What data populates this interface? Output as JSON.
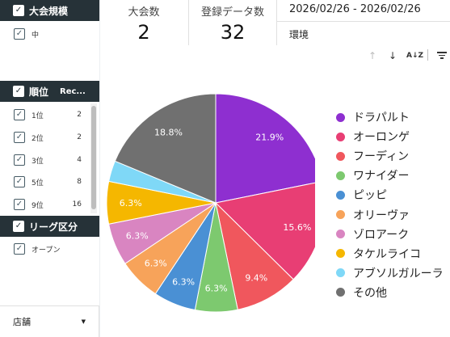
{
  "filters": {
    "tournament_size": {
      "title": "大会規模",
      "items": [
        {
          "label": "中",
          "checked": true
        }
      ]
    },
    "rank": {
      "title": "順位",
      "records_header": "Rec...",
      "items": [
        {
          "label": "1位",
          "records": "2",
          "checked": true
        },
        {
          "label": "2位",
          "records": "2",
          "checked": true
        },
        {
          "label": "3位",
          "records": "4",
          "checked": true
        },
        {
          "label": "5位",
          "records": "8",
          "checked": true
        },
        {
          "label": "9位",
          "records": "16",
          "checked": true
        }
      ]
    },
    "league": {
      "title": "リーグ区分",
      "items": [
        {
          "label": "オープン",
          "checked": true
        }
      ]
    },
    "store": {
      "label": "店舗"
    }
  },
  "kpis": [
    {
      "label": "大会数",
      "value": "2"
    },
    {
      "label": "登録データ数",
      "value": "32"
    }
  ],
  "date_range": "2026/02/26 - 2026/02/26",
  "section_label": "環境",
  "toolbar": {
    "sort_up_icon": "arrow-up-icon",
    "sort_down_icon": "arrow-down-icon",
    "sort_az_icon": "sort-az-icon",
    "filter_icon": "filter-icon"
  },
  "chart_data": {
    "type": "pie",
    "title": "",
    "slices": [
      {
        "name": "ドラパルト",
        "value": 21.9,
        "label": "21.9%",
        "color": "#8e2fd0"
      },
      {
        "name": "オーロンゲ",
        "value": 15.6,
        "label": "15.6%",
        "color": "#e83e74"
      },
      {
        "name": "フーディン",
        "value": 9.4,
        "label": "9.4%",
        "color": "#f0575d"
      },
      {
        "name": "ワナイダー",
        "value": 6.3,
        "label": "6.3%",
        "color": "#7dc96f"
      },
      {
        "name": "ピッピ",
        "value": 6.3,
        "label": "6.3%",
        "color": "#4a90d4"
      },
      {
        "name": "オリーヴァ",
        "value": 6.3,
        "label": "6.3%",
        "color": "#f7a35a"
      },
      {
        "name": "ゾロアーク",
        "value": 6.3,
        "label": "6.3%",
        "color": "#d985c1"
      },
      {
        "name": "タケルライコ",
        "value": 6.3,
        "label": "6.3%",
        "color": "#f5b700"
      },
      {
        "name": "アブソルガルーラ",
        "value": 3.1,
        "label": "",
        "color": "#7fd8f7"
      },
      {
        "name": "その他",
        "value": 18.8,
        "label": "18.8%",
        "color": "#707070"
      }
    ],
    "legend_position": "right"
  }
}
